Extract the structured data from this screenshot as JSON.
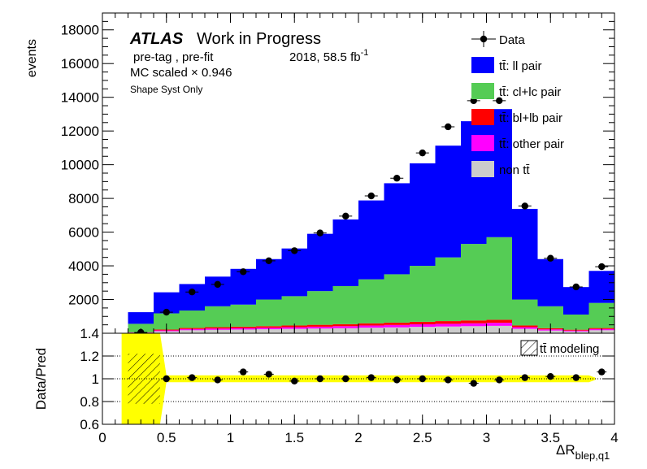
{
  "header": {
    "atlas": "ATLAS",
    "work": "Work in Progress",
    "sel": "pre-tag ,  pre-fit",
    "lumi_prefix": "2018, 58.5 fb",
    "lumi_exp": "-1",
    "mcscale": "MC scaled × 0.946",
    "syst": "Shape Syst Only"
  },
  "chart_data": {
    "type": "bar",
    "stacked": true,
    "x_edges": [
      0,
      0.2,
      0.4,
      0.6,
      0.8,
      1.0,
      1.2,
      1.4,
      1.6,
      1.8,
      2.0,
      2.2,
      2.4,
      2.6,
      2.8,
      3.0,
      3.2,
      3.4,
      3.6,
      3.8,
      4.0
    ],
    "xlabel_main": "ΔR",
    "xlabel_sub": "blep,q1",
    "xlim": [
      0,
      4
    ],
    "top_panel": {
      "ylabel": "events",
      "ylim": [
        0,
        19000
      ],
      "yticks": [
        2000,
        4000,
        6000,
        8000,
        10000,
        12000,
        14000,
        16000,
        18000
      ],
      "series": [
        {
          "name": "non tt̄",
          "color": "#cccccc",
          "values": [
            0,
            30,
            120,
            180,
            200,
            220,
            240,
            260,
            280,
            300,
            330,
            350,
            380,
            400,
            420,
            440,
            260,
            160,
            110,
            180
          ]
        },
        {
          "name": "tt̄: other pair",
          "color": "#ff00ff",
          "values": [
            0,
            15,
            50,
            70,
            80,
            85,
            90,
            100,
            110,
            120,
            130,
            140,
            150,
            160,
            170,
            180,
            100,
            70,
            50,
            70
          ]
        },
        {
          "name": "tt̄: bl+lb pair",
          "color": "#ff0000",
          "values": [
            0,
            15,
            50,
            70,
            80,
            85,
            90,
            100,
            110,
            120,
            130,
            140,
            150,
            160,
            170,
            180,
            100,
            70,
            50,
            60
          ]
        },
        {
          "name": "tt̄: cl+lc pair",
          "color": "#55cc55",
          "values": [
            0,
            500,
            960,
            1030,
            1240,
            1310,
            1580,
            1740,
            2000,
            2260,
            2610,
            2870,
            3320,
            3780,
            4540,
            4900,
            1540,
            1300,
            900,
            1490
          ]
        },
        {
          "name": "tt̄: ll pair",
          "color": "#0000ff",
          "values": [
            0,
            690,
            1250,
            1570,
            1760,
            2120,
            2400,
            2830,
            3400,
            3950,
            4680,
            5400,
            6080,
            6630,
            7280,
            7600,
            5380,
            2800,
            1630,
            1900
          ]
        }
      ],
      "data": {
        "name": "Data",
        "x": [
          0.3,
          0.5,
          0.7,
          0.9,
          1.1,
          1.3,
          1.5,
          1.7,
          1.9,
          2.1,
          2.3,
          2.5,
          2.7,
          2.9,
          3.1,
          3.3,
          3.5,
          3.7,
          3.9
        ],
        "y": [
          50,
          1250,
          2450,
          2900,
          3650,
          4300,
          4900,
          5950,
          6950,
          8150,
          9200,
          10700,
          12250,
          13800,
          13800,
          7550,
          4450,
          2750,
          3950
        ]
      }
    },
    "bottom_panel": {
      "ylabel": "Data/Pred",
      "ylim": [
        0.6,
        1.4
      ],
      "yticks": [
        0.6,
        0.8,
        1,
        1.2,
        1.4
      ],
      "ytick_labels": [
        "0.6",
        "0.8",
        "1",
        "1.2",
        "1.4"
      ],
      "gridlines": [
        0.8,
        1.0,
        1.2
      ],
      "ratio": {
        "x": [
          0.5,
          0.7,
          0.9,
          1.1,
          1.3,
          1.5,
          1.7,
          1.9,
          2.1,
          2.3,
          2.5,
          2.7,
          2.9,
          3.1,
          3.3,
          3.5,
          3.7,
          3.9
        ],
        "y": [
          1.0,
          1.01,
          0.99,
          1.06,
          1.04,
          0.98,
          1.0,
          1.0,
          1.01,
          0.99,
          1.0,
          0.99,
          0.96,
          0.99,
          1.01,
          1.02,
          1.01,
          1.06
        ]
      },
      "band_name": "tt̄ modeling",
      "band": {
        "x_edges": [
          0.15,
          0.45,
          0.5,
          3.8,
          3.85
        ],
        "half_width": [
          0.5,
          0.5,
          0.03,
          0.03,
          0.01
        ]
      },
      "hatch": {
        "x_edges": [
          0.2,
          0.45
        ],
        "half_width": 0.22
      }
    },
    "xticks": [
      0,
      0.5,
      1,
      1.5,
      2,
      2.5,
      3,
      3.5,
      4
    ],
    "xtick_labels": [
      "0",
      "0.5",
      "1",
      "1.5",
      "2",
      "2.5",
      "3",
      "3.5",
      "4"
    ],
    "legend": {
      "placement": "top-right"
    }
  }
}
